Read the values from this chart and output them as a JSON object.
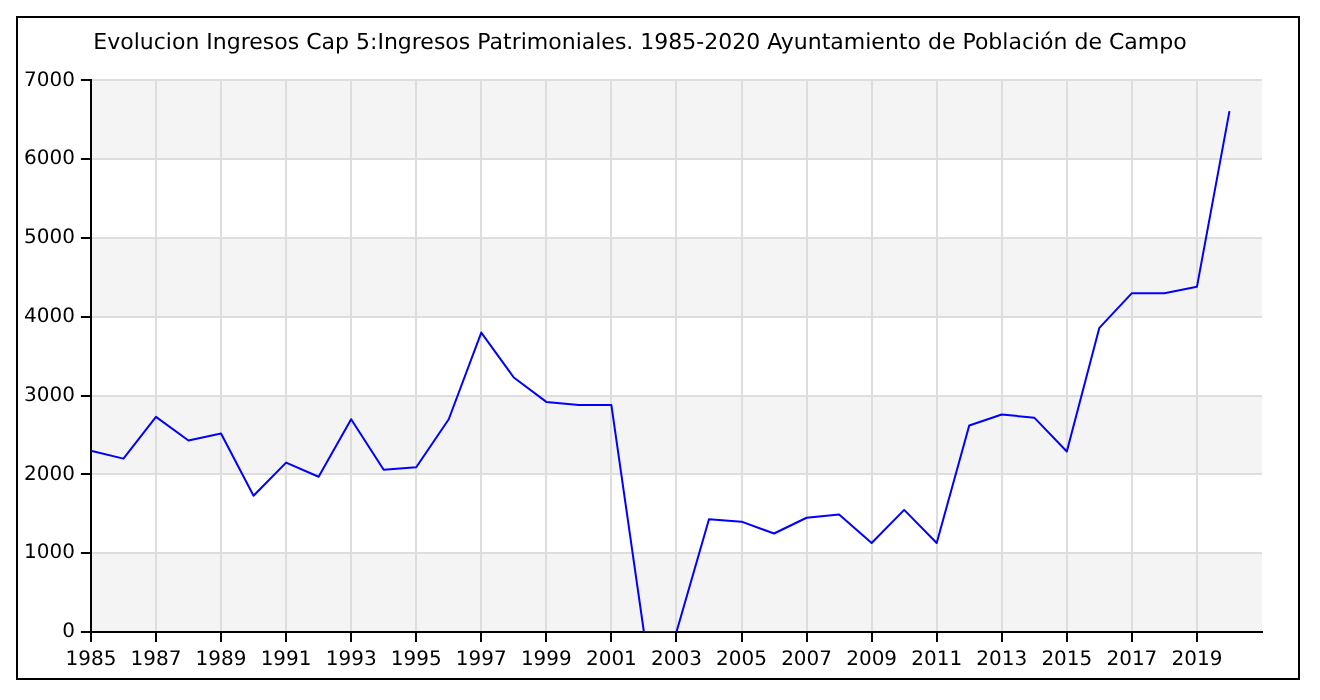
{
  "chart_data": {
    "type": "line",
    "title": "Evolucion Ingresos Cap 5:Ingresos Patrimoniales. 1985-2020 Ayuntamiento de Población de Campo",
    "x": [
      1985,
      1986,
      1987,
      1988,
      1989,
      1990,
      1991,
      1992,
      1993,
      1994,
      1995,
      1996,
      1997,
      1998,
      1999,
      2000,
      2001,
      2002,
      2003,
      2004,
      2005,
      2006,
      2007,
      2008,
      2009,
      2010,
      2011,
      2012,
      2013,
      2014,
      2015,
      2016,
      2017,
      2018,
      2019,
      2020
    ],
    "series": [
      {
        "color": "#0000ff",
        "values": [
          2300,
          2200,
          2730,
          2430,
          2520,
          1730,
          2150,
          1970,
          2700,
          2060,
          2090,
          2700,
          3800,
          3230,
          2920,
          2880,
          2880,
          0,
          0,
          1430,
          1400,
          1250,
          1450,
          1490,
          1130,
          1550,
          1130,
          2620,
          2760,
          2720,
          2290,
          3860,
          4300,
          4300,
          4380,
          6610
        ]
      }
    ],
    "xlim": [
      1985,
      2021
    ],
    "xticks": [
      1985,
      1987,
      1989,
      1991,
      1993,
      1995,
      1997,
      1999,
      2001,
      2003,
      2005,
      2007,
      2009,
      2011,
      2013,
      2015,
      2017,
      2019
    ],
    "ylim": [
      0,
      7000
    ],
    "yticks": [
      0,
      1000,
      2000,
      3000,
      4000,
      5000,
      6000,
      7000
    ],
    "grid": true,
    "legend": false,
    "marker": "none",
    "line_style": "solid"
  }
}
